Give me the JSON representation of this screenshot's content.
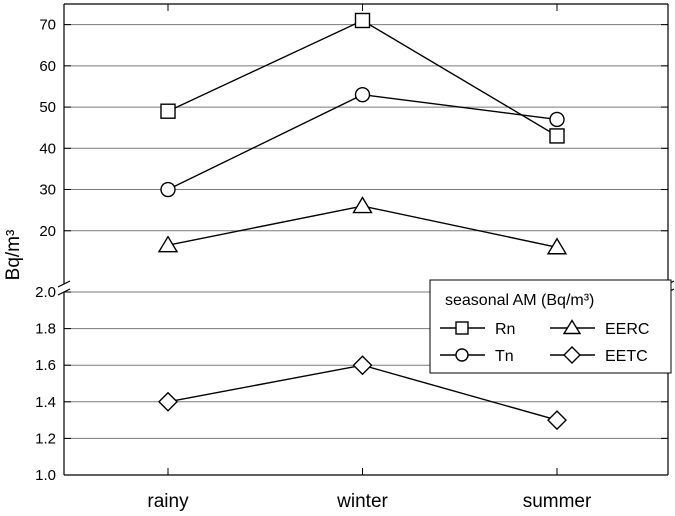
{
  "chart_data": {
    "type": "line",
    "categories": [
      "rainy",
      "winter",
      "summer"
    ],
    "ylabel": "Bq/m³",
    "axis_break": true,
    "upper_panel": {
      "ylim": [
        10,
        75
      ],
      "ticks": [
        "20",
        "30",
        "40",
        "50",
        "60",
        "70"
      ]
    },
    "lower_panel": {
      "ylim": [
        1.0,
        2.0
      ],
      "ticks": [
        "1.0",
        "1.2",
        "1.4",
        "1.6",
        "1.8",
        "2.0"
      ]
    },
    "grid": true,
    "series": [
      {
        "name": "Rn",
        "marker": "square",
        "panel": "upper",
        "values": [
          49,
          71,
          43
        ]
      },
      {
        "name": "Tn",
        "marker": "circle",
        "panel": "upper",
        "values": [
          30,
          53,
          47
        ]
      },
      {
        "name": "EERC",
        "marker": "triangle",
        "panel": "upper",
        "values": [
          16.5,
          26,
          16
        ]
      },
      {
        "name": "EETC",
        "marker": "diamond",
        "panel": "lower",
        "values": [
          1.4,
          1.6,
          1.3
        ]
      }
    ],
    "legend": {
      "title": "seasonal AM (Bq/m³)",
      "placement": "right",
      "entries": [
        "Rn",
        "EERC",
        "Tn",
        "EETC"
      ]
    }
  }
}
